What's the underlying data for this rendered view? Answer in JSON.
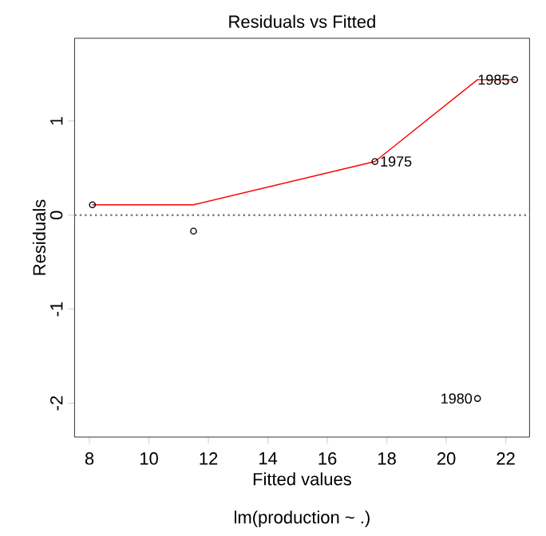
{
  "chart_data": {
    "type": "scatter",
    "title": "Residuals vs Fitted",
    "xlabel": "Fitted values",
    "ylabel": "Residuals",
    "xlim": [
      7.5,
      22.8
    ],
    "ylim": [
      -2.36,
      1.88
    ],
    "xticks": [
      8,
      10,
      12,
      14,
      16,
      18,
      20,
      22
    ],
    "yticks": [
      -2,
      -1,
      0,
      1
    ],
    "series": [
      {
        "color": "#000000",
        "marker": "circle",
        "x": [
          8.1,
          11.5,
          17.6,
          22.3,
          21.05
        ],
        "values": [
          0.11,
          -0.17,
          0.57,
          1.44,
          -1.95
        ]
      },
      {
        "type": "line",
        "color": "#ff0000",
        "marker": "none",
        "x": [
          8.1,
          11.5,
          17.6,
          21.05,
          22.3
        ],
        "values": [
          0.11,
          0.11,
          0.57,
          1.44,
          1.44
        ]
      }
    ],
    "ref_lines": [
      {
        "axis": "y",
        "value": 0,
        "color": "#808080",
        "line_style": "dotted"
      }
    ],
    "annotations": [
      {
        "text": "1975",
        "x": 17.6,
        "y": 0.57
      },
      {
        "text": "1985",
        "x": 22.3,
        "y": 1.44
      },
      {
        "text": "1980",
        "x": 21.05,
        "y": -1.95
      },
      "lm(production ~ .)"
    ]
  }
}
